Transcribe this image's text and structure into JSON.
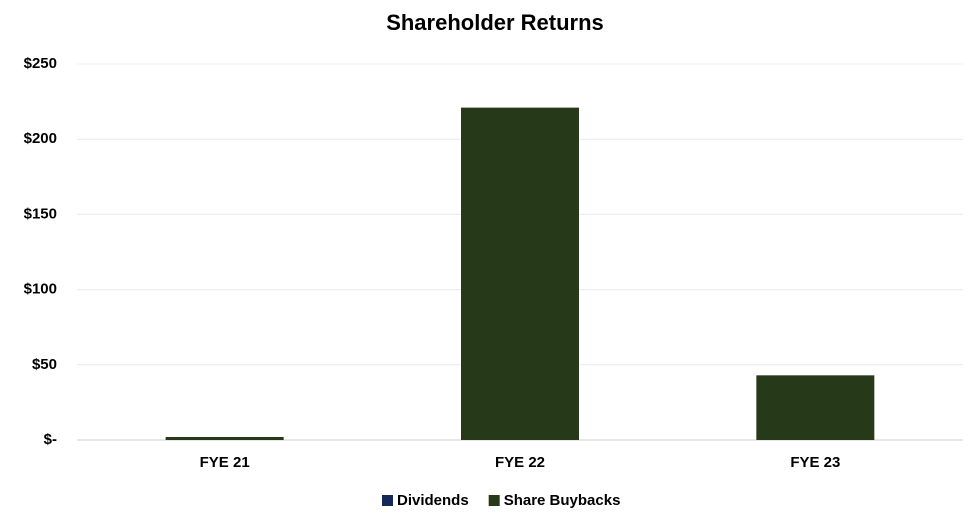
{
  "chart_data": {
    "type": "stacked_bar",
    "title": "Shareholder Returns",
    "categories": [
      "FYE 21",
      "FYE 22",
      "FYE 23"
    ],
    "series": [
      {
        "name": "Dividends",
        "color": "#14285a",
        "values": [
          0,
          0,
          0
        ]
      },
      {
        "name": "Share Buybacks",
        "color": "#263a1a",
        "values": [
          2,
          221,
          43
        ]
      }
    ],
    "ylim": [
      0,
      250
    ],
    "yticks": [
      {
        "value": 0,
        "label": "$-"
      },
      {
        "value": 50,
        "label": "$50"
      },
      {
        "value": 100,
        "label": "$100"
      },
      {
        "value": 150,
        "label": "$150"
      },
      {
        "value": 200,
        "label": "$200"
      },
      {
        "value": 250,
        "label": "$250"
      }
    ],
    "grid": true,
    "legend": "bottom"
  }
}
